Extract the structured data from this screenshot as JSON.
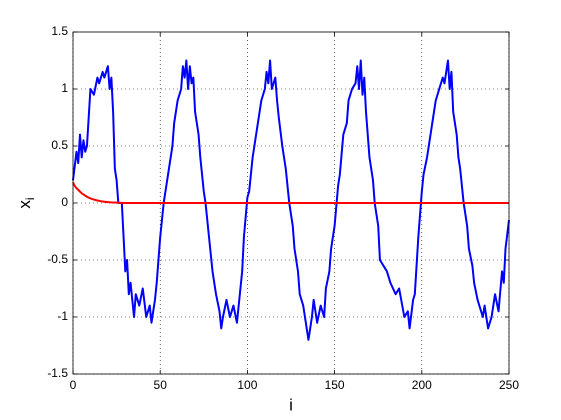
{
  "chart_data": {
    "type": "line",
    "xlabel": "i",
    "ylabel": {
      "text": "x",
      "subscript": "i"
    },
    "xlim": [
      0,
      250
    ],
    "xticks": [
      0,
      50,
      100,
      150,
      200,
      250
    ],
    "ylim": [
      -1.5,
      1.5
    ],
    "yticks": [
      -1.5,
      -1,
      -0.5,
      0,
      0.5,
      1,
      1.5
    ],
    "grid": true,
    "series": [
      {
        "color": "#0000ff",
        "x": [
          0,
          2,
          3,
          4,
          5,
          6,
          7,
          8,
          10,
          12,
          14,
          15,
          17,
          18,
          20,
          21,
          22,
          23,
          24,
          25,
          26,
          28,
          29,
          30,
          31,
          32,
          33,
          35,
          36,
          38,
          40,
          42,
          44,
          45,
          47,
          48,
          50,
          52,
          53,
          55,
          57,
          58,
          60,
          62,
          63,
          64,
          65,
          66,
          67,
          68,
          69,
          70,
          72,
          73,
          75,
          76,
          78,
          79,
          80,
          82,
          84,
          85,
          86,
          88,
          90,
          92,
          94,
          96,
          97,
          98,
          100,
          101,
          103,
          104,
          106,
          108,
          110,
          111,
          112,
          113,
          114,
          116,
          117,
          118,
          120,
          122,
          124,
          126,
          127,
          129,
          130,
          132,
          134,
          135,
          137,
          138,
          140,
          142,
          144,
          145,
          147,
          148,
          150,
          152,
          153,
          155,
          157,
          158,
          160,
          162,
          163,
          164,
          165,
          166,
          167,
          168,
          170,
          172,
          173,
          175,
          176,
          178,
          180,
          182,
          185,
          187,
          190,
          192,
          193,
          195,
          196,
          198,
          200,
          201,
          203,
          204,
          206,
          208,
          210,
          212,
          213,
          215,
          216,
          217,
          218,
          220,
          221,
          222,
          224,
          226,
          227,
          229,
          230,
          232,
          235,
          236,
          238,
          240,
          242,
          244,
          246,
          247,
          248,
          250
        ],
        "values": [
          0.2,
          0.45,
          0.35,
          0.6,
          0.4,
          0.55,
          0.45,
          0.5,
          1.0,
          0.95,
          1.1,
          1.05,
          1.15,
          1.1,
          1.2,
          1.0,
          1.1,
          0.8,
          0.3,
          0.2,
          0.0,
          0.0,
          -0.3,
          -0.6,
          -0.5,
          -0.8,
          -0.7,
          -1.0,
          -0.8,
          -0.9,
          -0.75,
          -1.0,
          -0.9,
          -1.05,
          -0.85,
          -0.7,
          -0.3,
          0.0,
          0.1,
          0.3,
          0.5,
          0.7,
          0.9,
          1.0,
          1.2,
          1.1,
          1.25,
          1.0,
          1.2,
          1.05,
          1.1,
          0.8,
          0.6,
          0.4,
          0.1,
          0.0,
          -0.3,
          -0.45,
          -0.6,
          -0.8,
          -0.95,
          -1.1,
          -1.0,
          -0.85,
          -1.0,
          -0.9,
          -1.05,
          -0.75,
          -0.6,
          -0.3,
          0.05,
          0.1,
          0.4,
          0.5,
          0.7,
          0.9,
          1.0,
          1.15,
          1.05,
          1.25,
          1.0,
          1.1,
          0.9,
          0.75,
          0.5,
          0.3,
          0.0,
          -0.2,
          -0.4,
          -0.6,
          -0.8,
          -0.9,
          -1.1,
          -1.2,
          -1.0,
          -0.85,
          -1.05,
          -0.9,
          -1.0,
          -0.75,
          -0.6,
          -0.4,
          -0.2,
          0.15,
          0.25,
          0.6,
          0.7,
          0.9,
          1.0,
          1.05,
          1.2,
          1.0,
          1.25,
          0.95,
          1.1,
          0.8,
          0.4,
          0.2,
          0.0,
          -0.2,
          -0.5,
          -0.55,
          -0.6,
          -0.7,
          -0.8,
          -0.75,
          -1.0,
          -0.95,
          -1.1,
          -0.85,
          -0.8,
          -0.3,
          0.1,
          0.25,
          0.4,
          0.5,
          0.7,
          0.9,
          1.0,
          1.1,
          1.05,
          1.25,
          1.0,
          1.15,
          0.8,
          0.6,
          0.4,
          0.3,
          0.0,
          -0.2,
          -0.4,
          -0.55,
          -0.7,
          -0.85,
          -1.0,
          -0.9,
          -1.1,
          -1.0,
          -0.8,
          -0.95,
          -0.6,
          -0.7,
          -0.4,
          -0.15
        ]
      },
      {
        "color": "#ff0000",
        "x": [
          0,
          1,
          2,
          3,
          4,
          5,
          6,
          8,
          10,
          12,
          14,
          16,
          18,
          20,
          22,
          25,
          28,
          30,
          250
        ],
        "values": [
          0.18,
          0.15,
          0.13,
          0.115,
          0.1,
          0.085,
          0.075,
          0.055,
          0.04,
          0.03,
          0.022,
          0.016,
          0.011,
          0.008,
          0.005,
          0.003,
          0.001,
          0,
          0
        ]
      }
    ]
  }
}
